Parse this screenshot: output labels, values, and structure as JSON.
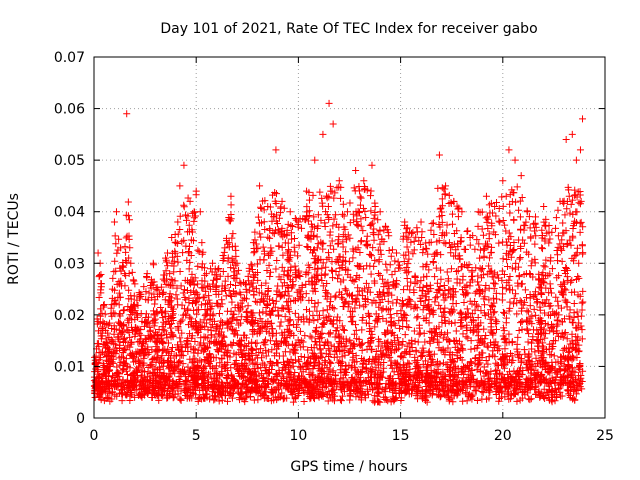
{
  "chart_data": {
    "type": "scatter",
    "title": "Day 101 of 2021, Rate Of TEC Index for receiver gabo",
    "xlabel": "GPS time / hours",
    "ylabel": "ROTI / TECUs",
    "xlim": [
      0,
      25
    ],
    "ylim": [
      0,
      0.07
    ],
    "x_ticks": [
      0,
      5,
      10,
      15,
      20,
      25
    ],
    "y_ticks": [
      0,
      0.01,
      0.02,
      0.03,
      0.04,
      0.05,
      0.06,
      0.07
    ],
    "x_tick_labels": [
      "0",
      "5",
      "10",
      "15",
      "20",
      "25"
    ],
    "y_tick_labels": [
      "0",
      "0.01",
      "0.02",
      "0.03",
      "0.04",
      "0.05",
      "0.06",
      "0.07"
    ],
    "grid": true,
    "marker": "+",
    "color": "#ff0000",
    "series": [
      {
        "x": [
          0.1,
          0.2,
          0.3,
          0.5,
          0.7,
          0.9,
          1.0,
          1.1,
          1.3,
          1.5,
          1.6,
          1.8,
          2.0,
          2.3,
          2.6,
          2.9,
          3.2,
          3.5,
          3.8,
          4.1,
          4.2,
          4.4,
          4.7,
          4.9,
          5.0,
          5.2,
          5.5,
          5.8,
          6.1,
          6.4,
          6.7,
          7.0,
          7.4,
          7.8,
          8.1,
          8.5,
          8.9,
          9.2,
          9.6,
          10.0,
          10.4,
          10.8,
          11.2,
          11.5,
          11.7,
          12.0,
          12.4,
          12.8,
          13.2,
          13.6,
          14.0,
          14.4,
          14.8,
          15.2,
          15.6,
          16.0,
          16.4,
          16.9,
          17.2,
          17.6,
          18.0,
          18.4,
          18.8,
          19.2,
          19.6,
          20.0,
          20.3,
          20.6,
          20.9,
          21.2,
          21.6,
          22.0,
          22.4,
          22.8,
          23.1,
          23.4,
          23.6,
          23.8,
          23.9
        ],
        "y": [
          0.012,
          0.032,
          0.03,
          0.022,
          0.018,
          0.025,
          0.038,
          0.04,
          0.033,
          0.028,
          0.059,
          0.03,
          0.026,
          0.024,
          0.028,
          0.03,
          0.024,
          0.031,
          0.035,
          0.038,
          0.045,
          0.049,
          0.042,
          0.04,
          0.044,
          0.04,
          0.028,
          0.03,
          0.029,
          0.033,
          0.043,
          0.03,
          0.026,
          0.034,
          0.045,
          0.041,
          0.052,
          0.042,
          0.04,
          0.038,
          0.044,
          0.05,
          0.055,
          0.061,
          0.057,
          0.046,
          0.04,
          0.048,
          0.046,
          0.049,
          0.04,
          0.036,
          0.032,
          0.038,
          0.036,
          0.038,
          0.034,
          0.051,
          0.045,
          0.042,
          0.04,
          0.035,
          0.04,
          0.043,
          0.041,
          0.046,
          0.052,
          0.05,
          0.047,
          0.04,
          0.039,
          0.041,
          0.036,
          0.042,
          0.054,
          0.055,
          0.05,
          0.052,
          0.058
        ]
      }
    ]
  }
}
